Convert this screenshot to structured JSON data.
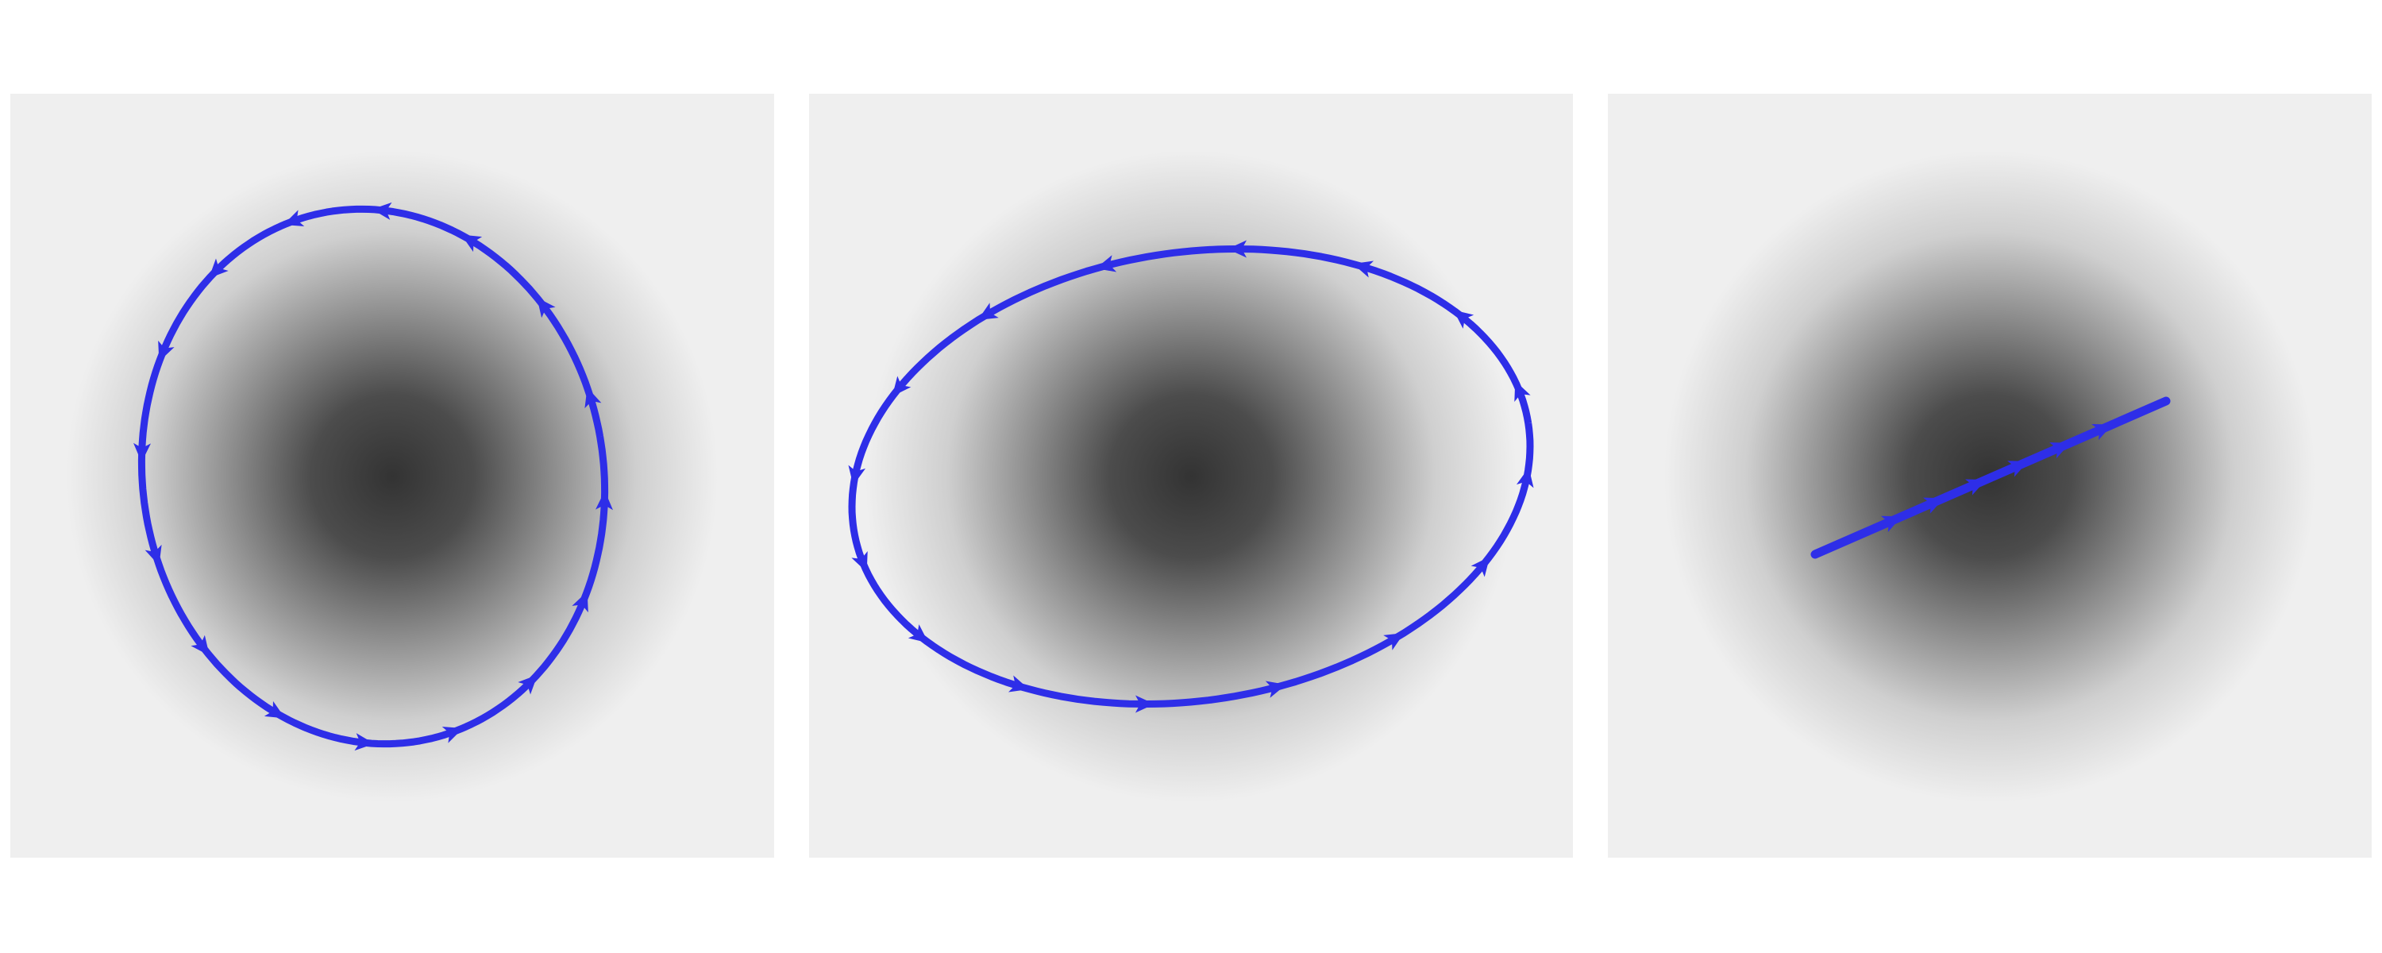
{
  "figure": {
    "panels": [
      {
        "id": "panel-1",
        "orbit": "ellipse",
        "arrow_direction": "counterclockwise",
        "arrow_count": 16
      },
      {
        "id": "panel-2",
        "orbit": "ellipse",
        "arrow_direction": "counterclockwise",
        "arrow_count": 16
      },
      {
        "id": "panel-3",
        "orbit": "line",
        "arrow_direction": "counterclockwise",
        "arrow_count": 6
      }
    ]
  },
  "colors": {
    "background": "#ffffff",
    "panel_background": "#efefef",
    "density_center": "#333333",
    "trajectory": "#2e2ee8"
  }
}
